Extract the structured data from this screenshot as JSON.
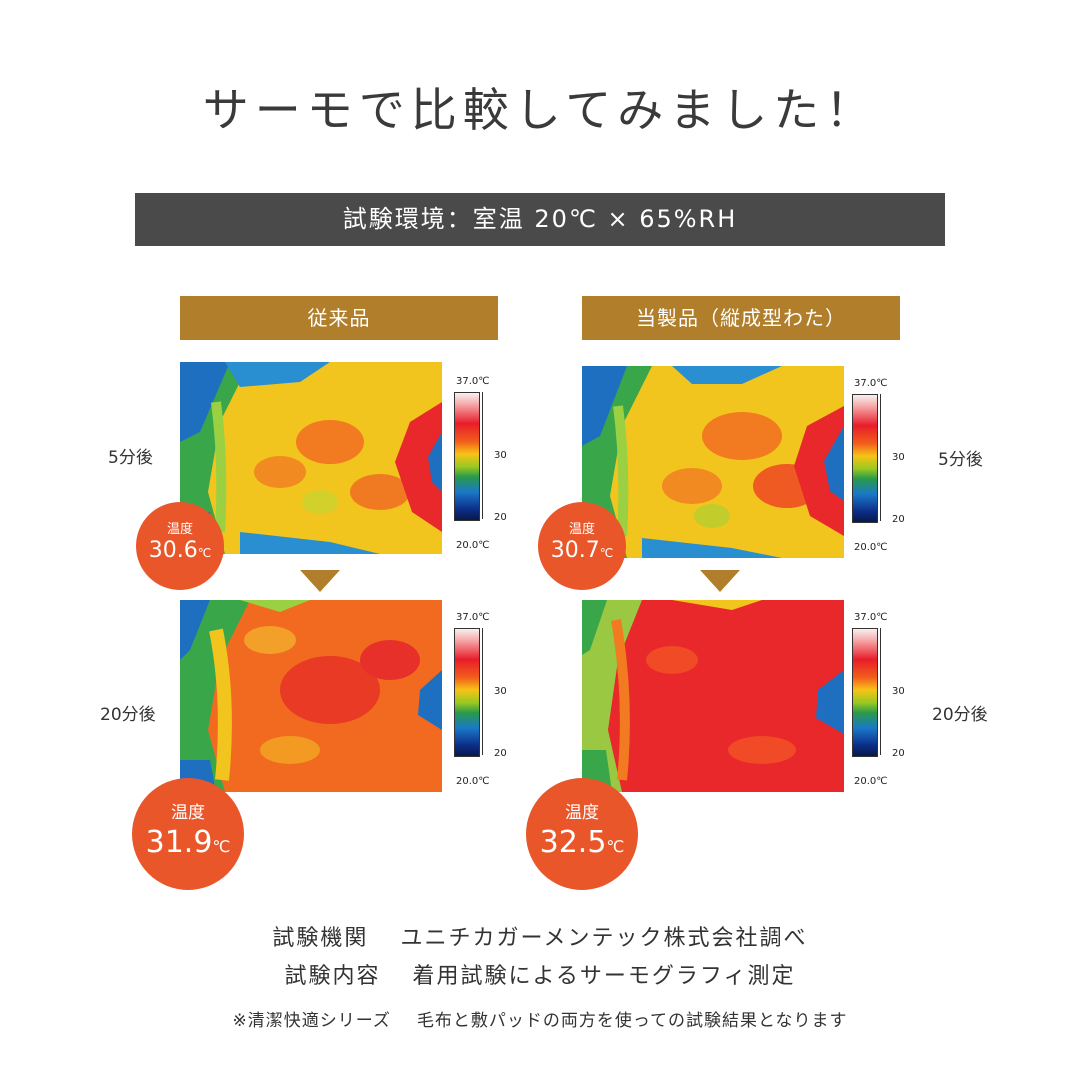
{
  "title": "サーモで比較してみました！",
  "environment": "試験環境：室温 20℃ × 65%RH",
  "columns": [
    {
      "label": "従来品"
    },
    {
      "label": "当製品（縦成型わた）"
    }
  ],
  "time_labels": {
    "five": "5分後",
    "twenty": "20分後"
  },
  "scale": {
    "max": "37.0℃",
    "mid": "30",
    "low": "20",
    "min": "20.0℃"
  },
  "badges": {
    "heading": "温度",
    "unit": "℃",
    "conv_5": "30.6",
    "prod_5": "30.7",
    "conv_20": "31.9",
    "prod_20": "32.5"
  },
  "info": {
    "org_label": "試験機関",
    "org_value": "ユニチカガーメンテック株式会社調べ",
    "content_label": "試験内容",
    "content_value": "着用試験によるサーモグラフィ測定"
  },
  "note": {
    "series": "※清潔快適シリーズ",
    "text": "毛布と敷パッドの両方を使っての試験結果となります"
  },
  "colors": {
    "accent_gold": "#b17f2c",
    "badge_orange": "#e8562a",
    "env_bar": "#4a4a4a"
  }
}
